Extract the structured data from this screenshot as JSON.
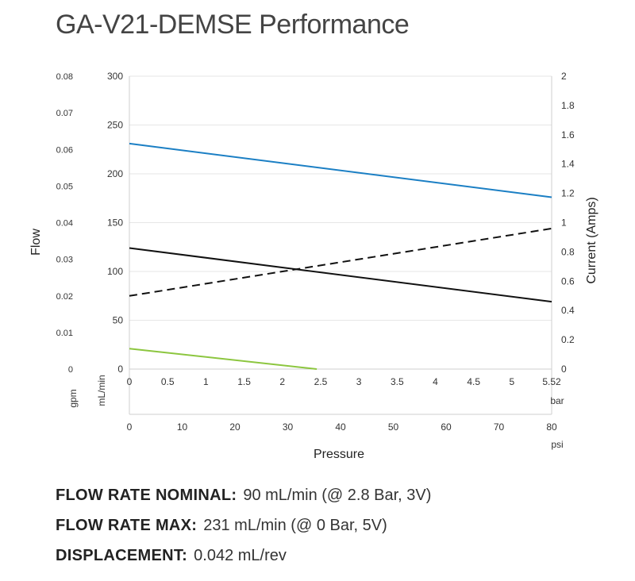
{
  "title": "GA-V21-DEMSE Performance",
  "specs": [
    {
      "label": "FLOW RATE NOMINAL:",
      "value": "90 mL/min (@ 2.8 Bar, 3V)"
    },
    {
      "label": "FLOW RATE MAX:",
      "value": "231 mL/min (@ 0 Bar, 5V)"
    },
    {
      "label": "DISPLACEMENT:",
      "value": "0.042 mL/rev"
    }
  ],
  "chart_data": {
    "type": "line",
    "title": "GA-V21-DEMSE Performance",
    "xlabel": "Pressure",
    "ylabel": "Flow",
    "y2label": "Current (Amps)",
    "grid": true,
    "x_bar": {
      "unit": "bar",
      "range": [
        0,
        5.52
      ],
      "ticks": [
        "0",
        "0.5",
        "1",
        "1.5",
        "2",
        "2.5",
        "3",
        "3.5",
        "4",
        "4.5",
        "5",
        "5.52"
      ]
    },
    "x_psi": {
      "unit": "psi",
      "range": [
        0,
        80
      ],
      "ticks": [
        "0",
        "10",
        "20",
        "30",
        "40",
        "50",
        "60",
        "70",
        "80"
      ]
    },
    "y_ml": {
      "unit": "mL/min",
      "range": [
        0,
        300
      ],
      "ticks": [
        "0",
        "50",
        "100",
        "150",
        "200",
        "250",
        "300"
      ]
    },
    "y_gpm": {
      "unit": "gpm",
      "range": [
        0,
        0.08
      ],
      "ticks": [
        "0",
        "0.01",
        "0.02",
        "0.03",
        "0.04",
        "0.05",
        "0.06",
        "0.07",
        "0.08"
      ]
    },
    "y_amps": {
      "range": [
        0,
        2
      ],
      "ticks": [
        "0",
        "0.2",
        "0.4",
        "0.6",
        "0.8",
        "1",
        "1.2",
        "1.4",
        "1.6",
        "1.8",
        "2"
      ]
    },
    "series": [
      {
        "axis": "flow",
        "color": "#1b7fc4",
        "dash": false,
        "x": [
          0,
          5.52
        ],
        "y": [
          231,
          176
        ]
      },
      {
        "axis": "flow",
        "color": "#111111",
        "dash": false,
        "x": [
          0,
          5.52
        ],
        "y": [
          124,
          69
        ]
      },
      {
        "axis": "flow",
        "color": "#8cc63f",
        "dash": false,
        "x": [
          0,
          2.45
        ],
        "y": [
          21,
          0
        ]
      },
      {
        "axis": "current",
        "color": "#111111",
        "dash": true,
        "x": [
          0,
          5.52
        ],
        "y": [
          0.5,
          0.96
        ]
      }
    ]
  }
}
